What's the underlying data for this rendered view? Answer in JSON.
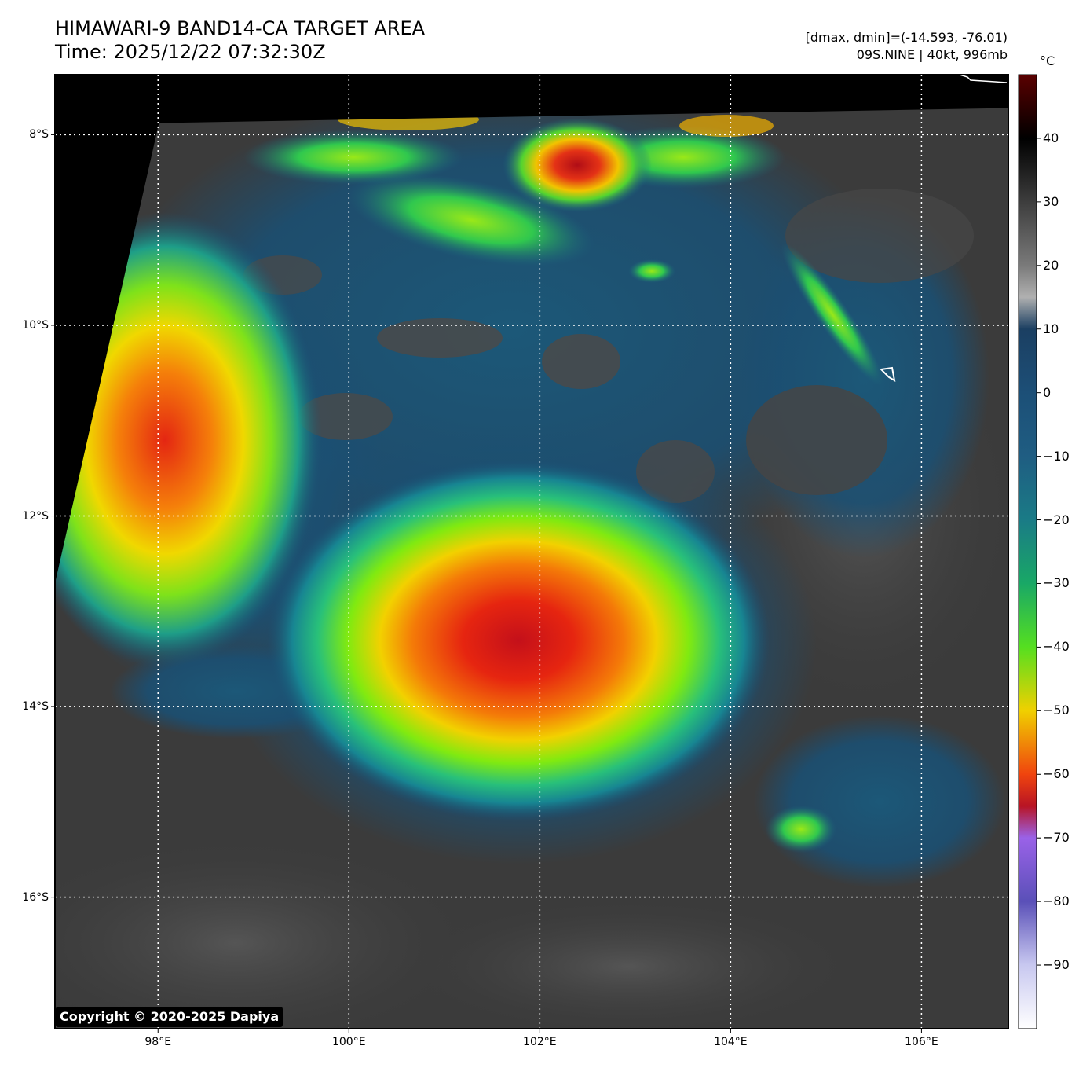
{
  "header": {
    "title_line1": "HIMAWARI-9 BAND14-CA TARGET AREA",
    "title_line2": "Time: 2025/12/22 07:32:30Z",
    "stats": "[dmax, dmin]=(-14.593, -76.01)",
    "storm": "09S.NINE | 40kt, 996mb"
  },
  "axes": {
    "lat_labels": [
      "8°S",
      "10°S",
      "12°S",
      "14°S",
      "16°S"
    ],
    "lon_labels": [
      "98°E",
      "100°E",
      "102°E",
      "104°E",
      "106°E"
    ],
    "lat_values": [
      -8,
      -10,
      -12,
      -14,
      -16
    ],
    "lon_values": [
      98,
      100,
      102,
      104,
      106
    ],
    "lat_range": [
      -17.38,
      -7.37
    ],
    "lon_range": [
      96.92,
      106.91
    ]
  },
  "colorbar": {
    "unit": "°C",
    "range": [
      -100,
      50
    ],
    "labels": [
      "40",
      "30",
      "20",
      "10",
      "0",
      "−10",
      "−20",
      "−30",
      "−40",
      "−50",
      "−60",
      "−70",
      "−80",
      "−90"
    ],
    "values": [
      40,
      30,
      20,
      10,
      0,
      -10,
      -20,
      -30,
      -40,
      -50,
      -60,
      -70,
      -80,
      -90
    ],
    "colors": {
      "stop_50": "#5a0000",
      "stop_40": "#000000",
      "stop_10": "#9a9a9a",
      "stop_5": "#1e4f78",
      "stop_-30": "#147c86",
      "stop_-50": "#33d41e",
      "stop_-60": "#f3cf00",
      "stop_-70": "#f0400e",
      "stop_-80": "#9a5ee6",
      "stop_-100": "#ffffff"
    }
  },
  "map": {
    "markers": [
      {
        "icon": "storm-position-icon",
        "lat": -10.5,
        "lon": 105.8
      }
    ],
    "features": [
      {
        "name": "primary-cyclone-convection",
        "lat": -13.5,
        "lon": 101.8,
        "min_temp_c": -76
      },
      {
        "name": "western-convection",
        "lat": -11.4,
        "lon": 98.1,
        "min_temp_c": -72
      },
      {
        "name": "northern-convection",
        "lat": -8.3,
        "lon": 102.5,
        "min_temp_c": -74
      }
    ]
  },
  "footer": {
    "copyright": "Copyright © 2020-2025 Dapiya"
  }
}
